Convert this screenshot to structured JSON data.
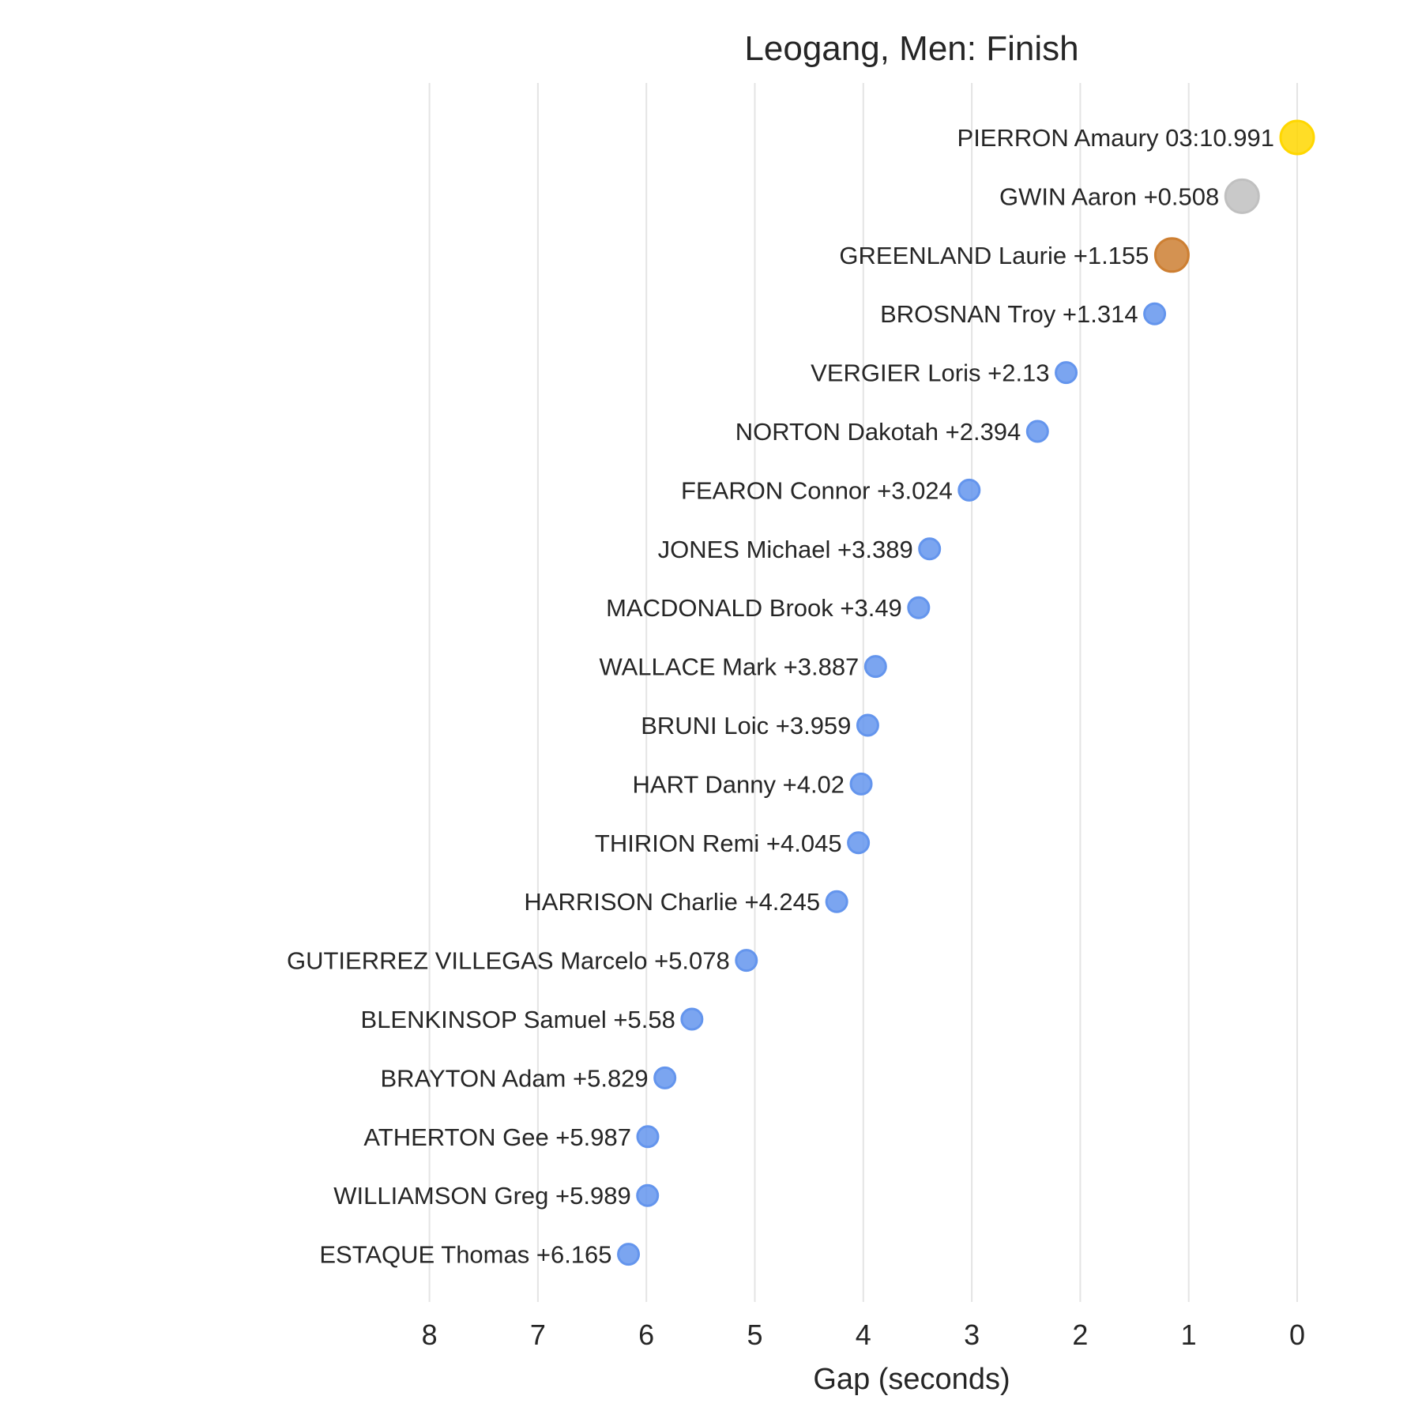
{
  "chart_data": {
    "type": "scatter",
    "title": "Leogang, Men: Finish",
    "xlabel": "Gap (seconds)",
    "ylabel": "",
    "xlim": [
      8,
      0
    ],
    "x_ticks": [
      "8",
      "7",
      "6",
      "5",
      "4",
      "3",
      "2",
      "1",
      "0"
    ],
    "grid": "vertical",
    "colors": {
      "gold": "#FFD700",
      "silver": "#C0C0C0",
      "bronze": "#CD7F32",
      "default": "#6495ED"
    },
    "points": [
      {
        "label": "PIERRON Amaury 03:10.991",
        "gap": 0.0,
        "medal": "gold"
      },
      {
        "label": "GWIN Aaron +0.508",
        "gap": 0.508,
        "medal": "silver"
      },
      {
        "label": "GREENLAND Laurie +1.155",
        "gap": 1.155,
        "medal": "bronze"
      },
      {
        "label": "BROSNAN Troy +1.314",
        "gap": 1.314,
        "medal": "default"
      },
      {
        "label": "VERGIER Loris +2.13",
        "gap": 2.13,
        "medal": "default"
      },
      {
        "label": "NORTON Dakotah +2.394",
        "gap": 2.394,
        "medal": "default"
      },
      {
        "label": "FEARON Connor +3.024",
        "gap": 3.024,
        "medal": "default"
      },
      {
        "label": "JONES Michael +3.389",
        "gap": 3.389,
        "medal": "default"
      },
      {
        "label": "MACDONALD Brook +3.49",
        "gap": 3.49,
        "medal": "default"
      },
      {
        "label": "WALLACE Mark +3.887",
        "gap": 3.887,
        "medal": "default"
      },
      {
        "label": "BRUNI Loic +3.959",
        "gap": 3.959,
        "medal": "default"
      },
      {
        "label": "HART Danny +4.02",
        "gap": 4.02,
        "medal": "default"
      },
      {
        "label": "THIRION Remi +4.045",
        "gap": 4.045,
        "medal": "default"
      },
      {
        "label": "HARRISON Charlie +4.245",
        "gap": 4.245,
        "medal": "default"
      },
      {
        "label": "GUTIERREZ VILLEGAS Marcelo +5.078",
        "gap": 5.078,
        "medal": "default"
      },
      {
        "label": "BLENKINSOP Samuel +5.58",
        "gap": 5.58,
        "medal": "default"
      },
      {
        "label": "BRAYTON Adam +5.829",
        "gap": 5.829,
        "medal": "default"
      },
      {
        "label": "ATHERTON Gee +5.987",
        "gap": 5.987,
        "medal": "default"
      },
      {
        "label": "WILLIAMSON Greg +5.989",
        "gap": 5.989,
        "medal": "default"
      },
      {
        "label": "ESTAQUE Thomas +6.165",
        "gap": 6.165,
        "medal": "default"
      }
    ]
  }
}
